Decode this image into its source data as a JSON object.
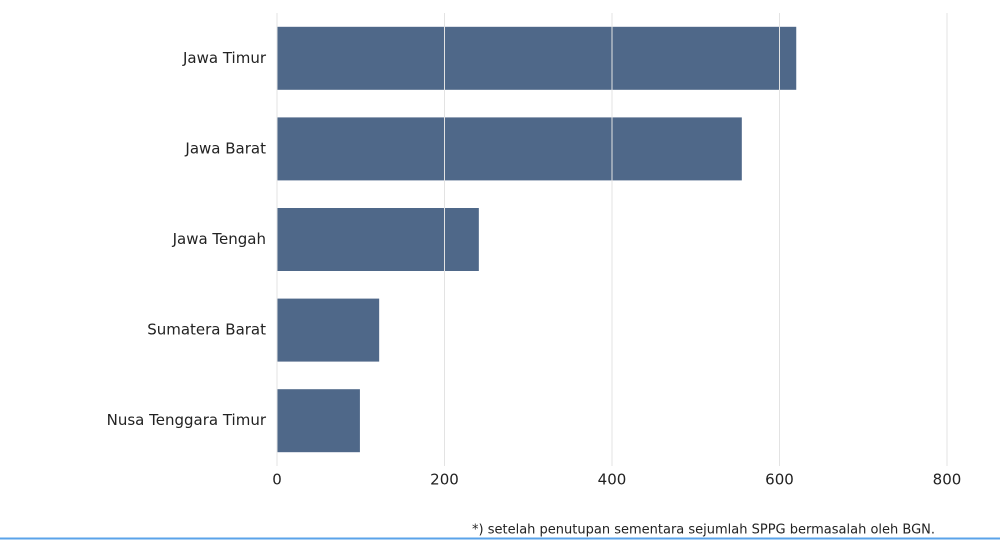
{
  "chart_data": {
    "type": "bar",
    "orientation": "horizontal",
    "categories": [
      "Jawa Timur",
      "Jawa Barat",
      "Jawa Tengah",
      "Sumatera Barat",
      "Nusa Tenggara Timur"
    ],
    "values": [
      620,
      555,
      241,
      122,
      99
    ],
    "color": "#4f6889",
    "xlim": [
      0,
      800
    ],
    "xticks": [
      0,
      200,
      400,
      600,
      800
    ],
    "grid": true,
    "footnote": "*) setelah penutupan sementara sejumlah SPPG bermasalah oleh BGN."
  }
}
